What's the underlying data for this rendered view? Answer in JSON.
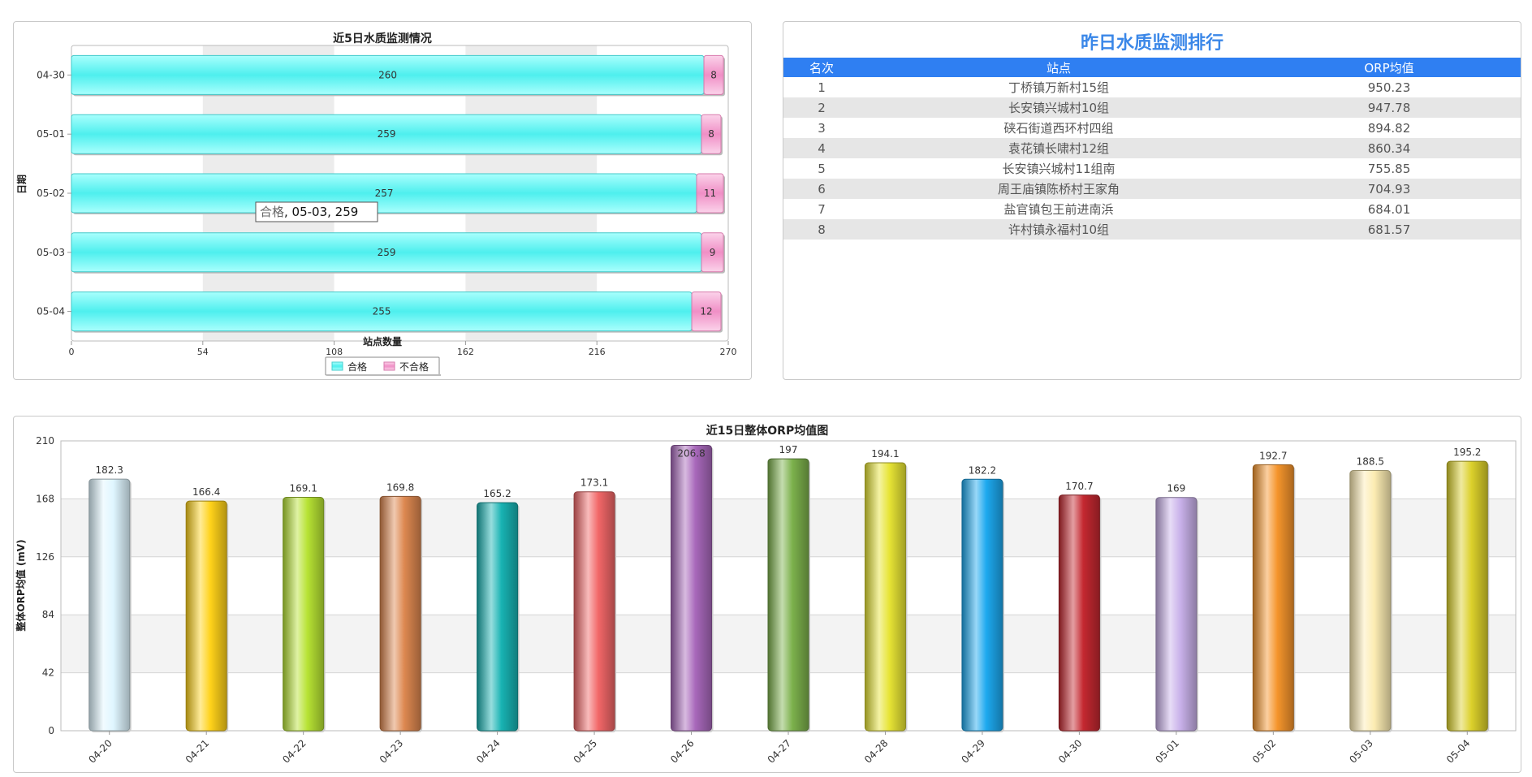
{
  "top_chart": {
    "title": "近5日水质监测情况",
    "ylabel": "日期",
    "xlabel": "站点数量",
    "legend": [
      "合格",
      "不合格"
    ],
    "tooltip": {
      "series": "合格",
      "rest": ", 05-03, 259"
    },
    "colors": {
      "pass": "#5ff0ee",
      "fail": "#f49ccc"
    }
  },
  "ranking": {
    "title": "昨日水质监测排行",
    "headers": [
      "名次",
      "站点",
      "ORP均值"
    ],
    "rows": [
      [
        "1",
        "丁桥镇万新村15组",
        "950.23"
      ],
      [
        "2",
        "长安镇兴城村10组",
        "947.78"
      ],
      [
        "3",
        "硖石街道西环村四组",
        "894.82"
      ],
      [
        "4",
        "袁花镇长啸村12组",
        "860.34"
      ],
      [
        "5",
        "长安镇兴城村11组南",
        "755.85"
      ],
      [
        "6",
        "周王庙镇陈桥村王家角",
        "704.93"
      ],
      [
        "7",
        "盐官镇包王前进南浜",
        "684.01"
      ],
      [
        "8",
        "许村镇永福村10组",
        "681.57"
      ]
    ]
  },
  "bottom_chart": {
    "title": "近15日整体ORP均值图",
    "ylabel": "整体ORP均值 (mV)"
  },
  "chart_data": [
    {
      "type": "bar",
      "orientation": "horizontal",
      "stacked": true,
      "title": "近5日水质监测情况",
      "xlabel": "站点数量",
      "ylabel": "日期",
      "categories": [
        "04-30",
        "05-01",
        "05-02",
        "05-03",
        "05-04"
      ],
      "series": [
        {
          "name": "合格",
          "values": [
            260,
            259,
            257,
            259,
            255
          ]
        },
        {
          "name": "不合格",
          "values": [
            8,
            8,
            11,
            9,
            12
          ]
        }
      ],
      "xlim": [
        0,
        270
      ],
      "xticks": [
        "0",
        "54",
        "108",
        "162",
        "216",
        "270"
      ],
      "legend": "bottom-center"
    },
    {
      "type": "bar",
      "title": "近15日整体ORP均值图",
      "ylabel": "整体ORP均值 (mV)",
      "categories": [
        "04-20",
        "04-21",
        "04-22",
        "04-23",
        "04-24",
        "04-25",
        "04-26",
        "04-27",
        "04-28",
        "04-29",
        "04-30",
        "05-01",
        "05-02",
        "05-03",
        "05-04"
      ],
      "values": [
        182.3,
        166.4,
        169.1,
        169.8,
        165.2,
        173.1,
        206.8,
        197,
        194.1,
        182.2,
        170.7,
        169,
        192.7,
        188.5,
        195.2
      ],
      "labels": [
        "182.3",
        "166.4",
        "169.1",
        "169.8",
        "165.2",
        "173.1",
        "206.8",
        "197",
        "194.1",
        "182.2",
        "170.7",
        "169",
        "192.7",
        "188.5",
        "195.2"
      ],
      "colors": [
        "#dff6ff",
        "#ffd21a",
        "#b7e334",
        "#dd8850",
        "#18b3b3",
        "#f26768",
        "#a868bb",
        "#7cb14c",
        "#e7e435",
        "#1da9ef",
        "#c42830",
        "#c9b1ea",
        "#f5952c",
        "#fcecb2",
        "#dcd12b"
      ],
      "ylim": [
        0,
        210
      ],
      "yticks": [
        "0",
        "42",
        "84",
        "126",
        "168",
        "210"
      ],
      "grid": true
    }
  ]
}
